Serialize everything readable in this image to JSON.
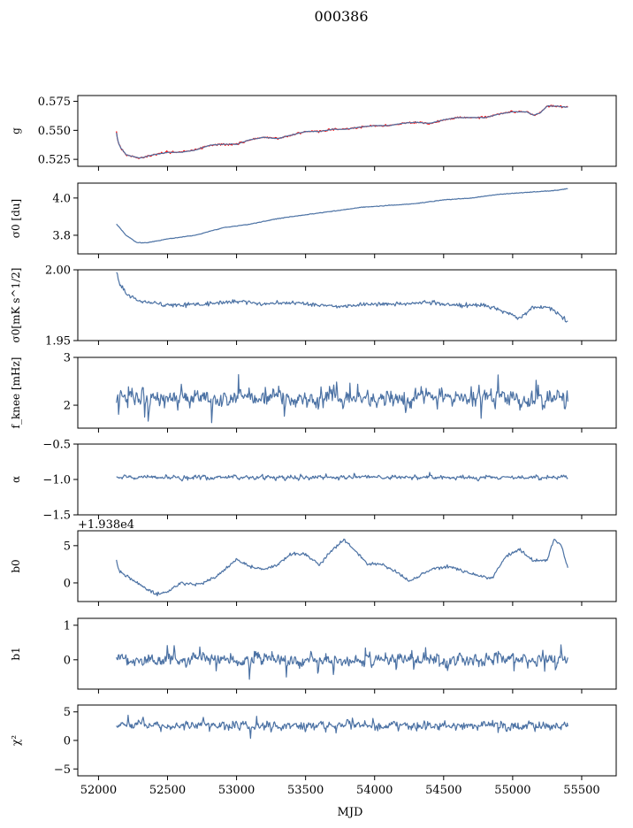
{
  "figure": {
    "title": "000386",
    "xlabel": "MJD"
  },
  "chart_data": {
    "type": "line",
    "x_axis": {
      "range": [
        51850,
        55750
      ],
      "ticks": [
        52000,
        52500,
        53000,
        53500,
        54000,
        54500,
        55000,
        55500
      ],
      "tick_labels": [
        "52000",
        "52500",
        "53000",
        "53500",
        "54000",
        "54500",
        "55000",
        "55500"
      ]
    },
    "line_color": "#4c72a4",
    "accent_color": "#ff0000",
    "panels": [
      {
        "ylabel": "g",
        "yrange": [
          0.519,
          0.58
        ],
        "ticks": [
          0.525,
          0.55,
          0.575
        ],
        "tick_labels": [
          "0.525",
          "0.550",
          "0.575"
        ],
        "offset_label": "",
        "series": [
          {
            "type": "trend",
            "color": "#ff0000",
            "noise": 0.0009,
            "x": [
              52130,
              52140,
              52160,
              52200,
              52300,
              52400,
              52500,
              52600,
              52700,
              52800,
              52900,
              53000,
              53100,
              53200,
              53300,
              53400,
              53500,
              53600,
              53700,
              53800,
              53900,
              54000,
              54100,
              54200,
              54300,
              54400,
              54500,
              54600,
              54700,
              54800,
              54900,
              55000,
              55100,
              55150,
              55200,
              55250,
              55300,
              55400
            ],
            "y": [
              0.548,
              0.541,
              0.535,
              0.529,
              0.526,
              0.529,
              0.531,
              0.531,
              0.533,
              0.537,
              0.538,
              0.538,
              0.542,
              0.544,
              0.543,
              0.546,
              0.549,
              0.549,
              0.551,
              0.551,
              0.553,
              0.554,
              0.554,
              0.556,
              0.557,
              0.556,
              0.559,
              0.561,
              0.561,
              0.561,
              0.564,
              0.566,
              0.566,
              0.563,
              0.565,
              0.571,
              0.571,
              0.57
            ]
          },
          {
            "type": "trend",
            "color": "#4c72a4",
            "noise": 0.0003,
            "x": [
              52130,
              52140,
              52160,
              52200,
              52300,
              52400,
              52500,
              52600,
              52700,
              52800,
              52900,
              53000,
              53100,
              53200,
              53300,
              53400,
              53500,
              53600,
              53700,
              53800,
              53900,
              54000,
              54100,
              54200,
              54300,
              54400,
              54500,
              54600,
              54700,
              54800,
              54900,
              55000,
              55100,
              55150,
              55200,
              55250,
              55300,
              55400
            ],
            "y": [
              0.548,
              0.541,
              0.535,
              0.529,
              0.526,
              0.529,
              0.531,
              0.531,
              0.533,
              0.537,
              0.538,
              0.538,
              0.542,
              0.544,
              0.543,
              0.546,
              0.549,
              0.549,
              0.551,
              0.551,
              0.553,
              0.554,
              0.554,
              0.556,
              0.557,
              0.556,
              0.559,
              0.561,
              0.561,
              0.561,
              0.564,
              0.566,
              0.566,
              0.563,
              0.565,
              0.571,
              0.571,
              0.57
            ]
          }
        ]
      },
      {
        "ylabel": "σ0 [du]",
        "yrange": [
          3.7,
          4.08
        ],
        "ticks": [
          3.8,
          4.0
        ],
        "tick_labels": [
          "3.8",
          "4.0"
        ],
        "offset_label": "",
        "series": [
          {
            "type": "trend",
            "color": "#4c72a4",
            "noise": 0.002,
            "x": [
              52130,
              52200,
              52280,
              52350,
              52500,
              52700,
              52900,
              53100,
              53300,
              53500,
              53700,
              53900,
              54100,
              54300,
              54500,
              54700,
              54900,
              55100,
              55300,
              55400
            ],
            "y": [
              3.86,
              3.8,
              3.76,
              3.76,
              3.78,
              3.8,
              3.84,
              3.86,
              3.89,
              3.91,
              3.93,
              3.95,
              3.96,
              3.97,
              3.99,
              4.0,
              4.02,
              4.03,
              4.04,
              4.05
            ]
          }
        ]
      },
      {
        "ylabel": "σ0[mK s^1/2]",
        "yrange": [
          1.95,
          2.0
        ],
        "ticks": [
          1.95,
          2.0
        ],
        "tick_labels": [
          "1.95",
          "2.00"
        ],
        "offset_label": "",
        "series": [
          {
            "type": "trend",
            "color": "#4c72a4",
            "noise": 0.0018,
            "x": [
              52130,
              52150,
              52200,
              52300,
              52500,
              52800,
              53000,
              53200,
              53400,
              53600,
              53800,
              54000,
              54200,
              54400,
              54600,
              54800,
              54950,
              55050,
              55150,
              55250,
              55350,
              55400
            ],
            "y": [
              1.999,
              1.991,
              1.983,
              1.978,
              1.975,
              1.976,
              1.978,
              1.976,
              1.977,
              1.975,
              1.974,
              1.976,
              1.976,
              1.977,
              1.975,
              1.975,
              1.97,
              1.966,
              1.973,
              1.974,
              1.968,
              1.963
            ]
          }
        ]
      },
      {
        "ylabel": "f_knee [mHz]",
        "yrange": [
          1.52,
          3.0
        ],
        "ticks": [
          2,
          3
        ],
        "tick_labels": [
          "2",
          "3"
        ],
        "offset_label": "",
        "series": [
          {
            "type": "noise",
            "color": "#4c72a4",
            "seed": 11,
            "x0": 52130,
            "x1": 55400,
            "n": 640,
            "mean": 2.15,
            "amp": 0.22,
            "spike": 0.55,
            "clip": [
              1.52,
              3.0
            ]
          }
        ]
      },
      {
        "ylabel": "α",
        "yrange": [
          -1.5,
          -0.5
        ],
        "ticks": [
          -1.5,
          -1.0,
          -0.5
        ],
        "tick_labels": [
          "−1.5",
          "−1.0",
          "−0.5"
        ],
        "offset_label": "",
        "series": [
          {
            "type": "noise",
            "color": "#4c72a4",
            "seed": 23,
            "x0": 52130,
            "x1": 55400,
            "n": 640,
            "mean": -0.97,
            "amp": 0.035,
            "spike": 0.05,
            "clip": [
              -1.2,
              -0.8
            ]
          }
        ]
      },
      {
        "ylabel": "b0",
        "yrange": [
          -2.5,
          7.0
        ],
        "ticks": [
          0,
          5
        ],
        "tick_labels": [
          "0",
          "5"
        ],
        "offset_label": "+1.938e4",
        "series": [
          {
            "type": "trend",
            "color": "#4c72a4",
            "noise": 0.25,
            "x": [
              52130,
              52150,
              52200,
              52280,
              52350,
              52420,
              52500,
              52600,
              52700,
              52800,
              52900,
              53000,
              53100,
              53200,
              53300,
              53400,
              53500,
              53600,
              53700,
              53780,
              53850,
              53950,
              54050,
              54150,
              54250,
              54350,
              54450,
              54550,
              54650,
              54750,
              54850,
              54950,
              55050,
              55150,
              55250,
              55300,
              55350,
              55400
            ],
            "y": [
              3.0,
              1.5,
              1.0,
              0.0,
              -0.8,
              -1.5,
              -1.2,
              0.0,
              -0.2,
              0.3,
              1.5,
              3.2,
              2.2,
              1.8,
              2.5,
              4.0,
              3.8,
              2.5,
              4.5,
              5.8,
              4.5,
              2.5,
              2.5,
              1.6,
              0.2,
              1.2,
              2.0,
              2.2,
              1.5,
              1.0,
              0.6,
              3.5,
              4.5,
              3.0,
              3.0,
              6.0,
              5.0,
              2.0
            ]
          }
        ]
      },
      {
        "ylabel": "b1",
        "yrange": [
          -0.85,
          1.2
        ],
        "ticks": [
          0,
          1
        ],
        "tick_labels": [
          "0",
          "1"
        ],
        "offset_label": "",
        "series": [
          {
            "type": "noise",
            "color": "#4c72a4",
            "seed": 37,
            "x0": 52130,
            "x1": 55400,
            "n": 720,
            "mean": 0.0,
            "amp": 0.2,
            "spike": 0.55,
            "clip": [
              -0.75,
              1.1
            ]
          }
        ]
      },
      {
        "ylabel": "χ²",
        "yrange": [
          -6.2,
          6.2
        ],
        "ticks": [
          -5,
          0,
          5
        ],
        "tick_labels": [
          "−5",
          "0",
          "5"
        ],
        "offset_label": "",
        "series": [
          {
            "type": "noise",
            "color": "#4c72a4",
            "seed": 53,
            "x0": 52130,
            "x1": 55400,
            "n": 660,
            "mean": 2.6,
            "amp": 0.9,
            "spike": 1.5,
            "clip": [
              0.0,
              6.0
            ]
          }
        ]
      }
    ]
  }
}
